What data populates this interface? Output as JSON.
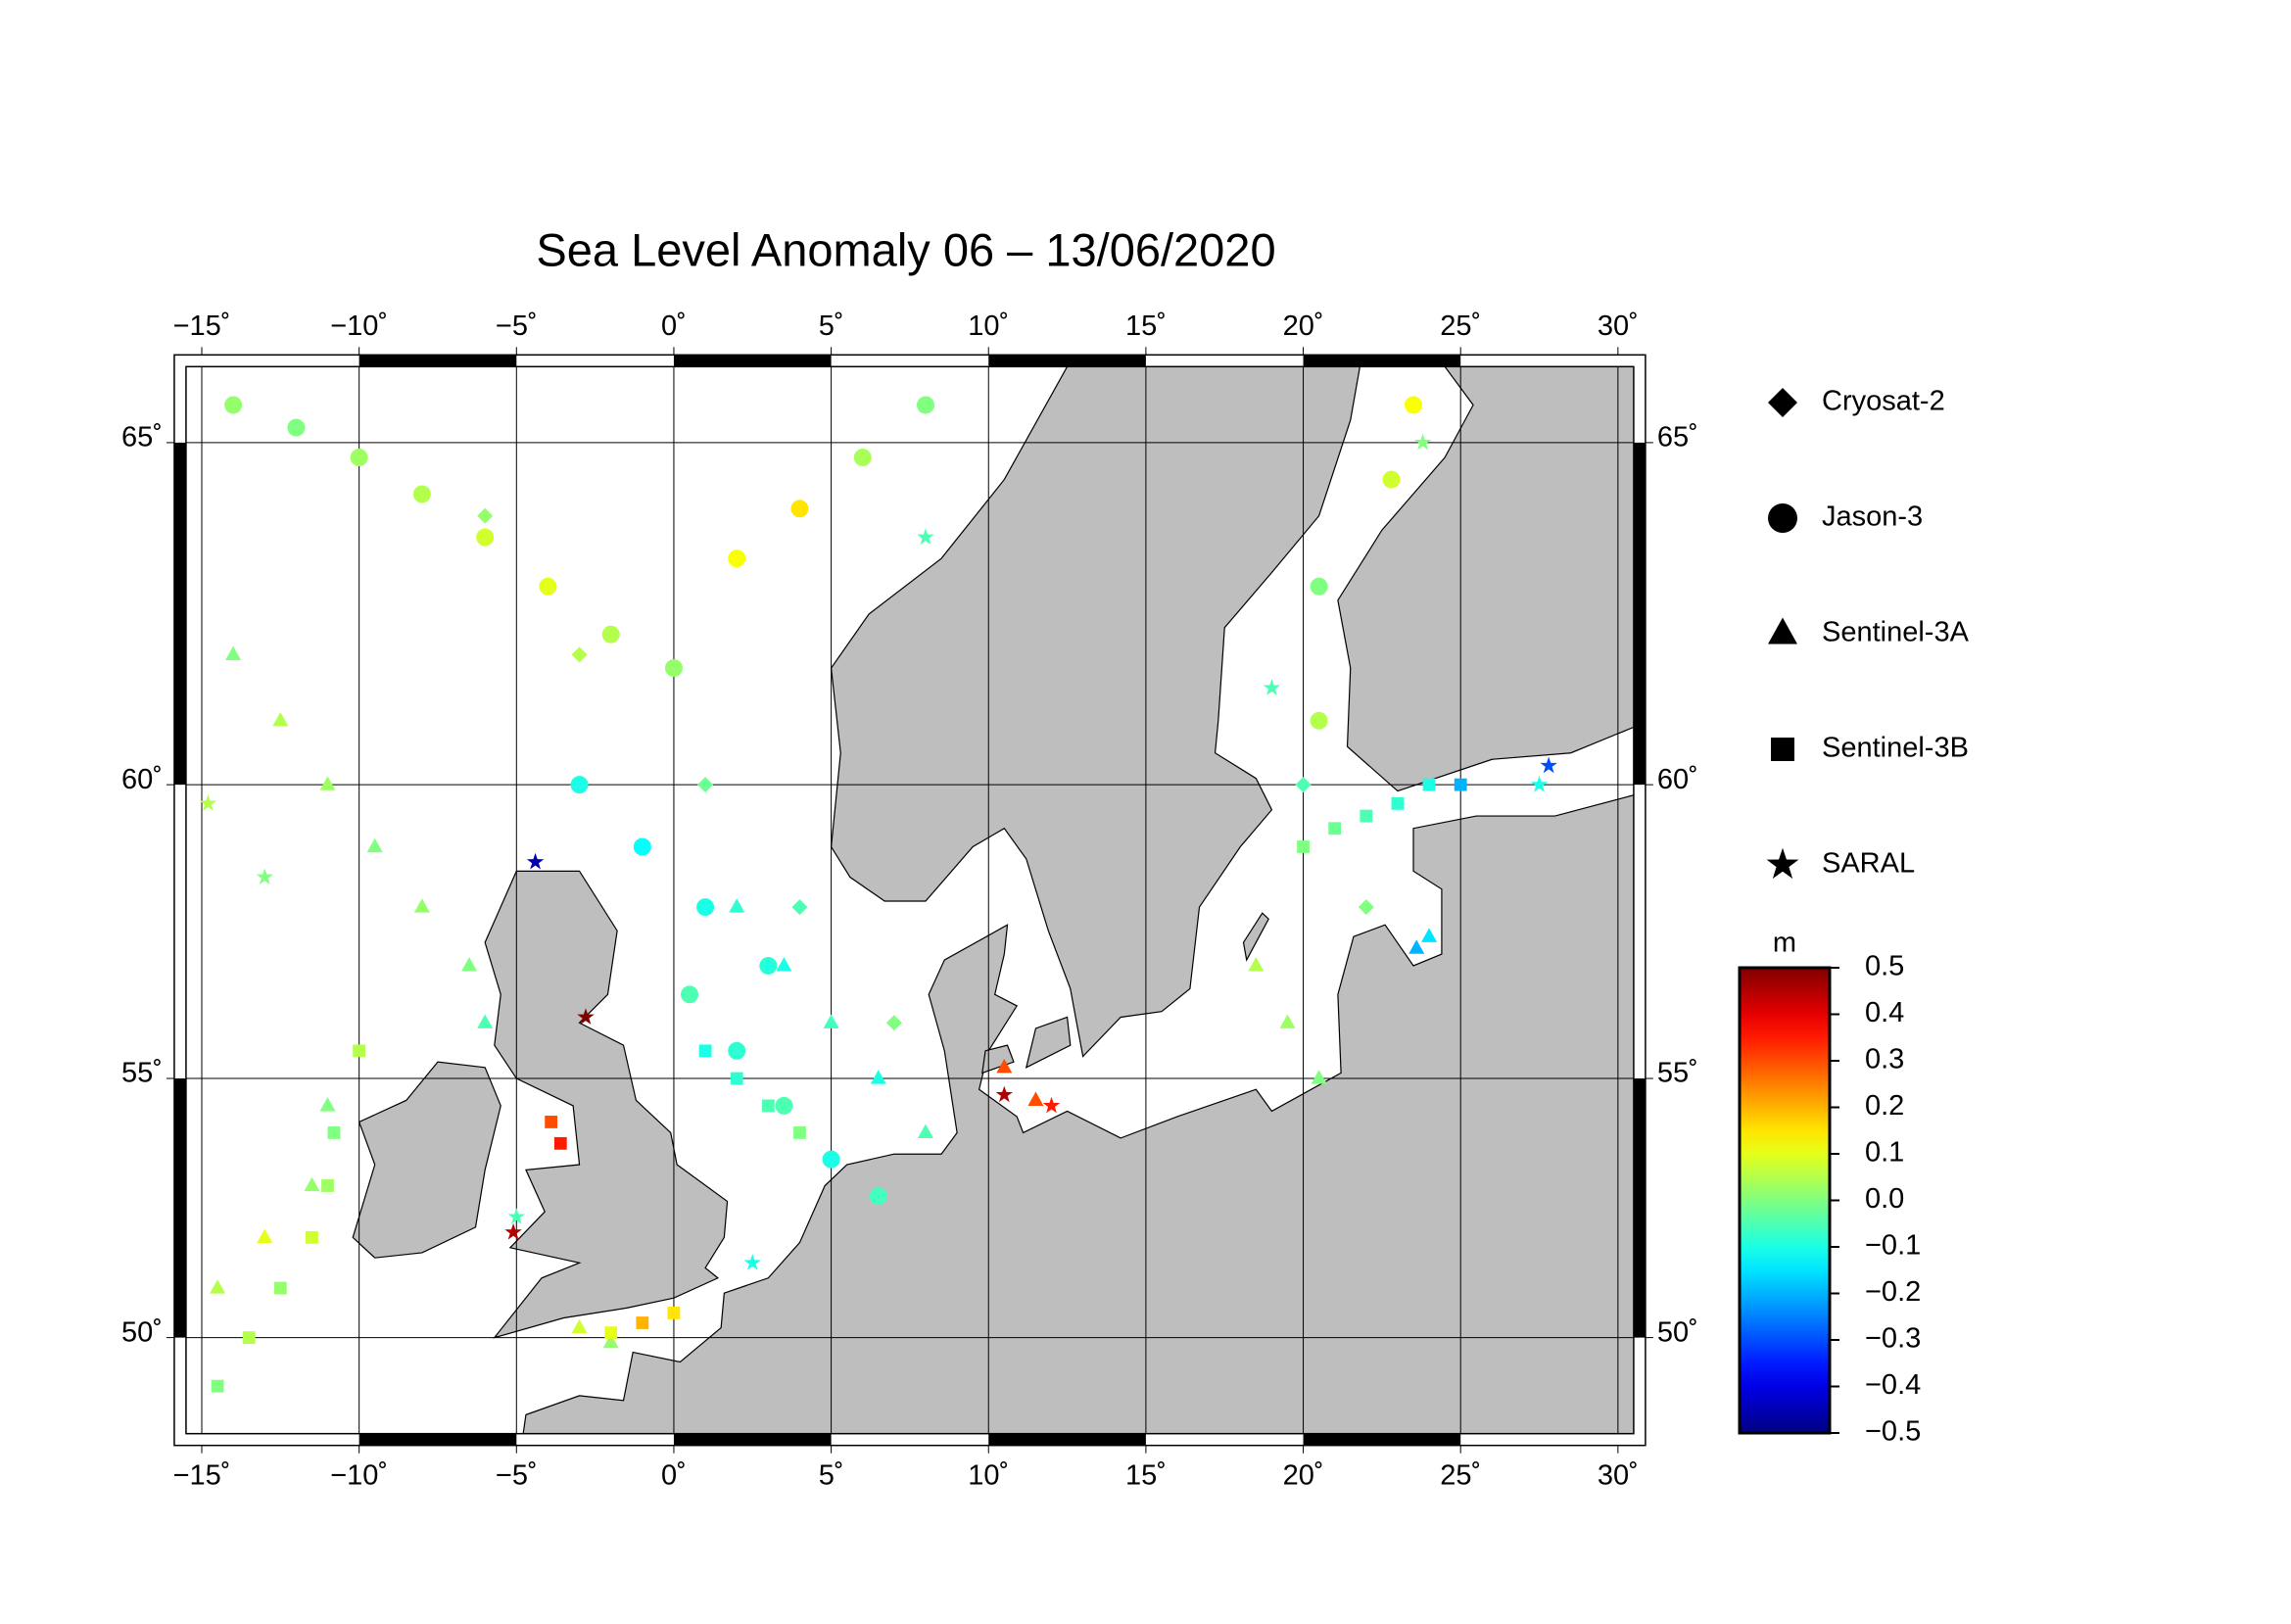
{
  "chart_data": {
    "type": "map",
    "title": "Sea Level Anomaly 06 – 13/06/2020",
    "projection": "mercator",
    "xlim": [
      -15.5,
      30.5
    ],
    "ylim": [
      48,
      66
    ],
    "xticks": [
      {
        "value": -15,
        "label": "−15˚"
      },
      {
        "value": -10,
        "label": "−10˚"
      },
      {
        "value": -5,
        "label": "−5˚"
      },
      {
        "value": 0,
        "label": "0˚"
      },
      {
        "value": 5,
        "label": "5˚"
      },
      {
        "value": 10,
        "label": "10˚"
      },
      {
        "value": 15,
        "label": "15˚"
      },
      {
        "value": 20,
        "label": "20˚"
      },
      {
        "value": 25,
        "label": "25˚"
      },
      {
        "value": 30,
        "label": "30˚"
      }
    ],
    "yticks": [
      {
        "value": 50,
        "label": "50˚"
      },
      {
        "value": 55,
        "label": "55˚"
      },
      {
        "value": 60,
        "label": "60˚"
      },
      {
        "value": 65,
        "label": "65˚"
      }
    ],
    "grid": true,
    "land_color": "#bebebe",
    "colormap": "jet",
    "clim": [
      -0.5,
      0.5
    ],
    "colorbar_label": "m",
    "colorbar_ticks": [
      0.5,
      0.4,
      0.3,
      0.2,
      0.1,
      {
        "value": 0,
        "label": "0.0"
      },
      {
        "value": -0.1,
        "label": "−0.1"
      },
      {
        "value": -0.2,
        "label": "−0.2"
      },
      {
        "value": -0.3,
        "label": "−0.3"
      },
      {
        "value": -0.4,
        "label": "−0.4"
      },
      {
        "value": -0.5,
        "label": "−0.5"
      }
    ],
    "series": [
      {
        "name": "Cryosat-2",
        "marker": "diamond",
        "lon": [
          -6,
          -3,
          1,
          4,
          7,
          20,
          22
        ],
        "lat": [
          64,
          62,
          60,
          58,
          56,
          60,
          58
        ],
        "values": [
          0.02,
          0.05,
          -0.02,
          -0.05,
          0.0,
          -0.05,
          0.0
        ]
      },
      {
        "name": "Jason-3",
        "marker": "circle",
        "lon": [
          -14,
          -12,
          -10,
          -8,
          -6,
          -4,
          -2,
          0,
          2,
          4,
          6,
          8,
          -3,
          -1,
          1,
          3,
          0.5,
          2,
          3.5,
          5,
          6.5,
          20.5,
          20.5,
          23.5,
          22.8
        ],
        "lat": [
          65.5,
          65.2,
          64.8,
          64.3,
          63.7,
          63,
          62.3,
          61.8,
          63.4,
          64.1,
          64.8,
          65.5,
          60,
          59,
          58,
          57,
          56.5,
          55.5,
          54.5,
          53.5,
          52.8,
          63,
          61,
          65.5,
          64.5
        ],
        "values": [
          0.02,
          0.0,
          0.03,
          0.05,
          0.08,
          0.1,
          0.05,
          0.02,
          0.12,
          0.15,
          0.04,
          0.0,
          -0.1,
          -0.12,
          -0.1,
          -0.08,
          -0.05,
          -0.08,
          -0.05,
          -0.1,
          -0.06,
          0.0,
          0.05,
          0.12,
          0.08
        ]
      },
      {
        "name": "Sentinel-3A",
        "marker": "triangle",
        "lon": [
          -14,
          -12.5,
          -11,
          -9.5,
          -8,
          -6.5,
          -6,
          -14.5,
          -13,
          -11.5,
          -11,
          2,
          3.5,
          5,
          6.5,
          8,
          18.5,
          19.5,
          20.5,
          23.6,
          24,
          10.5,
          11.5,
          -3,
          -2
        ],
        "lat": [
          62,
          61,
          60,
          59,
          58,
          57,
          56,
          51,
          52,
          53,
          54.5,
          58,
          57,
          56,
          55,
          54,
          57,
          56,
          55,
          57.3,
          57.5,
          55.2,
          54.6,
          50.2,
          49.9
        ],
        "values": [
          0.0,
          0.05,
          0.03,
          0.0,
          0.02,
          0.0,
          -0.05,
          0.05,
          0.1,
          0.02,
          0.0,
          -0.08,
          -0.1,
          -0.06,
          -0.1,
          -0.05,
          0.05,
          0.03,
          0.0,
          -0.2,
          -0.15,
          0.3,
          0.3,
          0.08,
          0.02
        ]
      },
      {
        "name": "Sentinel-3B",
        "marker": "square",
        "lon": [
          -14.5,
          -13.5,
          -12.5,
          -11.5,
          -11,
          -10.8,
          -10,
          -3.9,
          -3.6,
          1,
          2,
          3,
          4,
          20,
          21,
          22,
          23,
          24,
          25,
          0,
          -1,
          -2
        ],
        "lat": [
          49,
          50,
          51,
          52,
          53,
          54,
          55.5,
          54.2,
          53.8,
          55.5,
          55,
          54.5,
          54,
          59,
          59.3,
          59.5,
          59.7,
          60,
          60,
          50.5,
          50.3,
          50.1
        ],
        "values": [
          0.0,
          0.05,
          0.02,
          0.08,
          0.03,
          0.0,
          0.05,
          0.3,
          0.35,
          -0.1,
          -0.08,
          -0.05,
          0.0,
          0.0,
          -0.02,
          -0.05,
          -0.08,
          -0.1,
          -0.2,
          0.15,
          0.2,
          0.1
        ]
      },
      {
        "name": "SARAL",
        "marker": "star",
        "lon": [
          -4.4,
          -2.8,
          -5.1,
          12,
          10.5,
          27.8,
          27.5,
          -14.8,
          -13,
          3,
          2.5,
          -5,
          19,
          8,
          23.8
        ],
        "lat": [
          58.75,
          56.1,
          52.1,
          54.5,
          54.7,
          60.3,
          60,
          59.7,
          58.5,
          57,
          51.5,
          52.4,
          61.5,
          63.7,
          65
        ],
        "values": [
          -0.45,
          0.5,
          0.45,
          0.35,
          0.45,
          -0.3,
          -0.1,
          0.05,
          0.0,
          -0.1,
          -0.1,
          -0.05,
          -0.05,
          -0.05,
          0.0
        ]
      }
    ]
  }
}
